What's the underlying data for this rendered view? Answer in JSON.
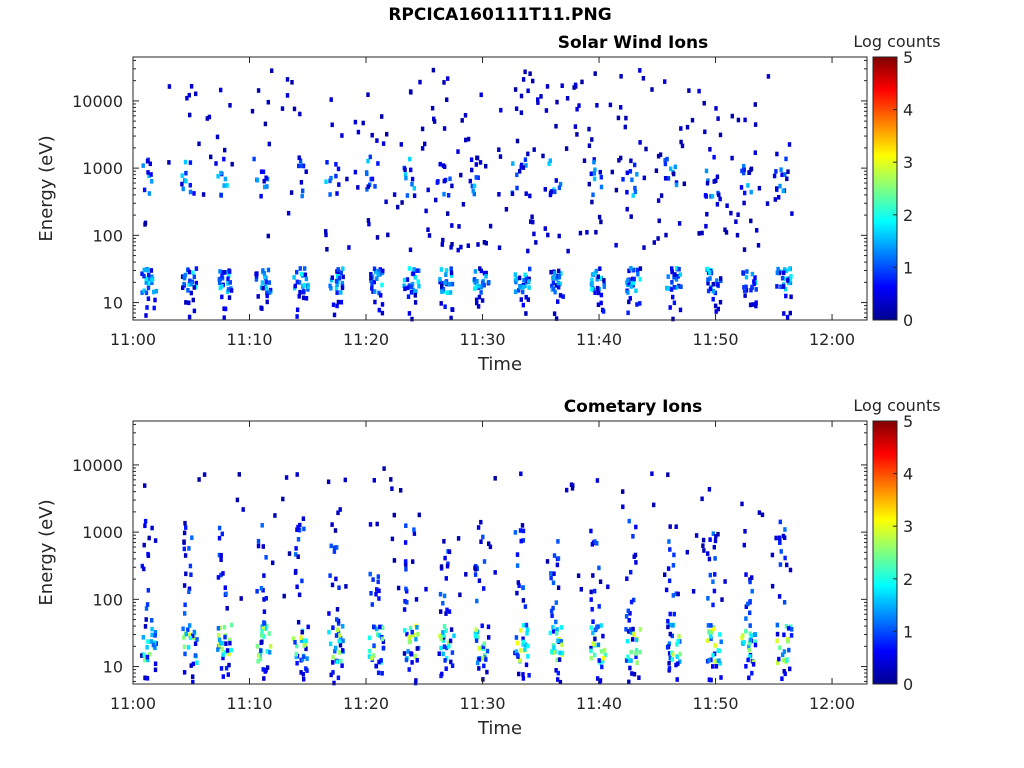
{
  "figure_title": "RPCICA160111T11.PNG",
  "colormap": [
    "#00008f",
    "#0000ff",
    "#0080ff",
    "#00ffff",
    "#80ff80",
    "#ffff00",
    "#ff8000",
    "#ff0000",
    "#800000"
  ],
  "chart_data": [
    {
      "id": "solar-wind",
      "type": "heatmap",
      "title": "Solar Wind Ions",
      "xlabel": "Time",
      "ylabel": "Energy (eV)",
      "xlim": [
        "11:00",
        "12:03"
      ],
      "ylim": [
        5.5,
        45000
      ],
      "yscale": "log",
      "xticks": [
        "11:00",
        "11:10",
        "11:20",
        "11:30",
        "11:40",
        "11:50",
        "12:00"
      ],
      "yticks": [
        10,
        100,
        1000,
        10000
      ],
      "yticklabels": [
        "10",
        "100",
        "1000",
        "10000"
      ],
      "colorbar": {
        "label": "Log counts",
        "range": [
          0,
          5
        ],
        "ticks": [
          "0",
          "1",
          "2",
          "3",
          "4",
          "5"
        ]
      },
      "sweep_times_min": [
        1,
        4.5,
        7.5,
        10.8,
        14,
        17,
        20.5,
        23.5,
        26.5,
        29.5,
        33,
        36,
        39.5,
        42.5,
        46,
        49.5,
        52.5,
        55.5
      ],
      "low_energy_band_eV": [
        15,
        35
      ],
      "high_energy_band_eV": [
        400,
        1600
      ],
      "peak_log_counts": 1.9,
      "data_end_time": "11:56.5"
    },
    {
      "id": "cometary",
      "type": "heatmap",
      "title": "Cometary Ions",
      "xlabel": "Time",
      "ylabel": "Energy (eV)",
      "xlim": [
        "11:00",
        "12:03"
      ],
      "ylim": [
        5.5,
        45000
      ],
      "yscale": "log",
      "xticks": [
        "11:00",
        "11:10",
        "11:20",
        "11:30",
        "11:40",
        "11:50",
        "12:00"
      ],
      "yticks": [
        10,
        100,
        1000,
        10000
      ],
      "yticklabels": [
        "10",
        "100",
        "1000",
        "10000"
      ],
      "colorbar": {
        "label": "Log counts",
        "range": [
          0,
          5
        ],
        "ticks": [
          "0",
          "1",
          "2",
          "3",
          "4",
          "5"
        ]
      },
      "sweep_times_min": [
        1,
        4.5,
        7.5,
        10.8,
        14,
        17,
        20.5,
        23.5,
        26.5,
        29.5,
        33,
        36,
        39.5,
        42.5,
        46,
        49.5,
        52.5,
        55.5
      ],
      "low_energy_band_eV": [
        12,
        45
      ],
      "peak_log_counts": 2.9,
      "data_end_time": "11:56.5"
    }
  ]
}
